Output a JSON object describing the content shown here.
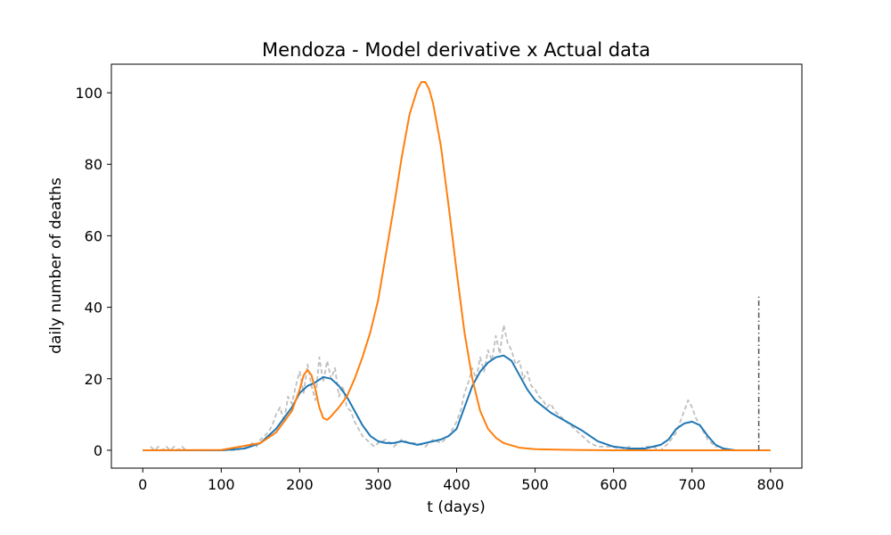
{
  "chart_data": {
    "type": "line",
    "title": "Mendoza - Model derivative x Actual data",
    "xlabel": "t (days)",
    "ylabel": "daily number of deaths",
    "xlim": [
      -40,
      840
    ],
    "ylim": [
      -5,
      108
    ],
    "x_ticks": [
      0,
      100,
      200,
      300,
      400,
      500,
      600,
      700,
      800
    ],
    "y_ticks": [
      0,
      20,
      40,
      60,
      80,
      100
    ],
    "grid": false,
    "legend": "none",
    "colors": {
      "raw": "#bfbfbf",
      "smooth": "#1f77b4",
      "model": "#ff7f0e",
      "vline": "#555555"
    },
    "series": [
      {
        "style": "dashed",
        "color_key": "raw",
        "note": "noisy daily data, approximate envelope sampled every 5 days",
        "x": [
          10,
          15,
          20,
          25,
          30,
          35,
          40,
          45,
          50,
          55,
          60,
          70,
          80,
          90,
          100,
          110,
          120,
          130,
          140,
          145,
          150,
          155,
          160,
          165,
          170,
          175,
          180,
          185,
          190,
          195,
          200,
          205,
          210,
          215,
          220,
          225,
          230,
          235,
          240,
          245,
          250,
          255,
          260,
          265,
          270,
          275,
          280,
          285,
          290,
          295,
          300,
          310,
          320,
          330,
          340,
          350,
          360,
          370,
          380,
          390,
          395,
          400,
          405,
          410,
          415,
          420,
          425,
          430,
          435,
          440,
          445,
          450,
          455,
          460,
          465,
          470,
          475,
          480,
          485,
          490,
          495,
          500,
          505,
          510,
          515,
          520,
          525,
          530,
          535,
          540,
          545,
          550,
          555,
          560,
          565,
          570,
          580,
          590,
          600,
          610,
          620,
          630,
          640,
          650,
          660,
          670,
          680,
          685,
          690,
          695,
          700,
          705,
          710,
          715,
          720,
          725,
          730,
          735,
          740,
          750
        ],
        "y": [
          1,
          0,
          1,
          0,
          1,
          0,
          1,
          0,
          1,
          0,
          0,
          0,
          0,
          0,
          0,
          0,
          0,
          1,
          2,
          1,
          3,
          4,
          5,
          7,
          10,
          12,
          8,
          15,
          13,
          18,
          22,
          16,
          24,
          18,
          14,
          26,
          19,
          25,
          20,
          23,
          15,
          18,
          12,
          11,
          8,
          6,
          4,
          3,
          2,
          1,
          2,
          3,
          1,
          3,
          2,
          2,
          1,
          3,
          2,
          4,
          6,
          8,
          11,
          16,
          19,
          23,
          20,
          26,
          22,
          28,
          25,
          32,
          27,
          35,
          30,
          28,
          24,
          25,
          20,
          22,
          18,
          17,
          15,
          14,
          12,
          13,
          11,
          10,
          9,
          8,
          7,
          6,
          5,
          4,
          3,
          2,
          1,
          1,
          1,
          0,
          1,
          0,
          1,
          1,
          0,
          2,
          5,
          8,
          11,
          14,
          12,
          9,
          7,
          5,
          3,
          2,
          1,
          1,
          0,
          0
        ]
      },
      {
        "style": "solid",
        "color_key": "smooth",
        "x": [
          0,
          100,
          130,
          150,
          170,
          190,
          200,
          210,
          220,
          230,
          240,
          250,
          260,
          270,
          280,
          290,
          300,
          310,
          320,
          330,
          340,
          350,
          360,
          370,
          380,
          390,
          400,
          410,
          420,
          430,
          440,
          450,
          460,
          470,
          480,
          490,
          500,
          520,
          540,
          560,
          570,
          580,
          600,
          620,
          640,
          660,
          670,
          680,
          690,
          700,
          710,
          720,
          730,
          740,
          755
        ],
        "y": [
          0,
          0,
          0.5,
          2,
          6,
          12,
          16,
          18,
          19,
          20.5,
          20,
          18,
          15,
          11,
          7,
          4,
          2.5,
          2,
          2,
          2.5,
          2,
          1.5,
          2,
          2.5,
          3,
          4,
          6,
          12,
          18,
          22,
          24.5,
          26,
          26.5,
          25,
          21,
          17,
          14,
          10.5,
          8,
          5.5,
          4,
          2.5,
          1,
          0.5,
          0.5,
          1.5,
          3,
          6,
          7.5,
          8,
          7,
          4,
          1.5,
          0.5,
          0
        ]
      },
      {
        "style": "solid",
        "color_key": "model",
        "x": [
          0,
          100,
          150,
          170,
          180,
          190,
          195,
          200,
          205,
          210,
          215,
          220,
          225,
          230,
          235,
          240,
          250,
          260,
          270,
          280,
          290,
          300,
          310,
          320,
          330,
          340,
          350,
          355,
          360,
          365,
          370,
          380,
          390,
          400,
          410,
          420,
          430,
          440,
          450,
          460,
          480,
          500,
          550,
          600,
          700,
          800
        ],
        "y": [
          0,
          0.1,
          2,
          5,
          8,
          11,
          14,
          17,
          21,
          22.5,
          21,
          17,
          12,
          9,
          8.5,
          9.5,
          12,
          15,
          20,
          26,
          33,
          42,
          55,
          68,
          82,
          94,
          101,
          103,
          103,
          101,
          97,
          85,
          68,
          50,
          33,
          20,
          11,
          6,
          3.5,
          2,
          0.7,
          0.3,
          0.1,
          0,
          0,
          0
        ]
      },
      {
        "style": "dashdot",
        "color_key": "vline",
        "x": [
          785,
          785
        ],
        "y": [
          0,
          43
        ]
      }
    ]
  }
}
